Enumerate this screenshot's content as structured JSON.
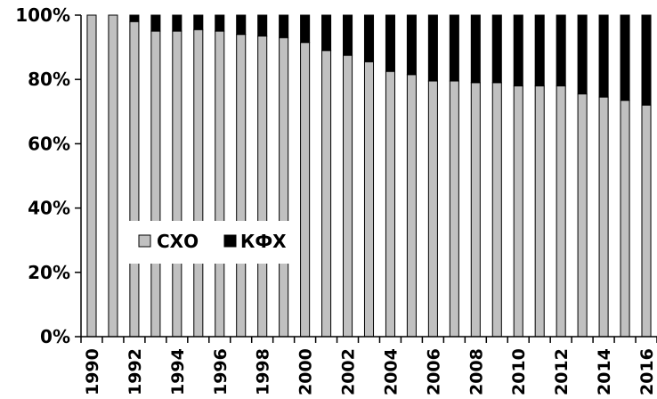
{
  "chart_data": {
    "type": "bar",
    "stacked": true,
    "normalized": true,
    "title": "",
    "xlabel": "",
    "ylabel": "",
    "ylim": [
      0,
      100
    ],
    "y_ticks": [
      "0%",
      "20%",
      "40%",
      "60%",
      "80%",
      "100%"
    ],
    "y_tick_values": [
      0,
      20,
      40,
      60,
      80,
      100
    ],
    "grid": false,
    "legend_position": "lower-left",
    "categories": [
      "1990",
      "1991",
      "1992",
      "1993",
      "1994",
      "1995",
      "1996",
      "1997",
      "1998",
      "1999",
      "2000",
      "2001",
      "2002",
      "2003",
      "2004",
      "2005",
      "2006",
      "2007",
      "2008",
      "2009",
      "2010",
      "2011",
      "2012",
      "2013",
      "2014",
      "2015",
      "2016"
    ],
    "x_tick_labels": [
      "1990",
      "1992",
      "1994",
      "1996",
      "1998",
      "2000",
      "2002",
      "2004",
      "2006",
      "2008",
      "2010",
      "2012",
      "2014",
      "2016"
    ],
    "series": [
      {
        "name": "СХО",
        "color": "#c0c0c0",
        "values": [
          100,
          100,
          98,
          95,
          95,
          95.5,
          95,
          94,
          93.5,
          93,
          91.5,
          89,
          87.5,
          85.5,
          82.5,
          81.5,
          79.5,
          79.5,
          79,
          79,
          78,
          78,
          78,
          75.5,
          74.5,
          73.5,
          72
        ]
      },
      {
        "name": "КФХ",
        "color": "#000000",
        "values": [
          0,
          0,
          2,
          5,
          5,
          4.5,
          5,
          6,
          6.5,
          7,
          8.5,
          11,
          12.5,
          14.5,
          17.5,
          18.5,
          20.5,
          20.5,
          21,
          21,
          22,
          22,
          22,
          24.5,
          25.5,
          26.5,
          28
        ]
      }
    ]
  }
}
